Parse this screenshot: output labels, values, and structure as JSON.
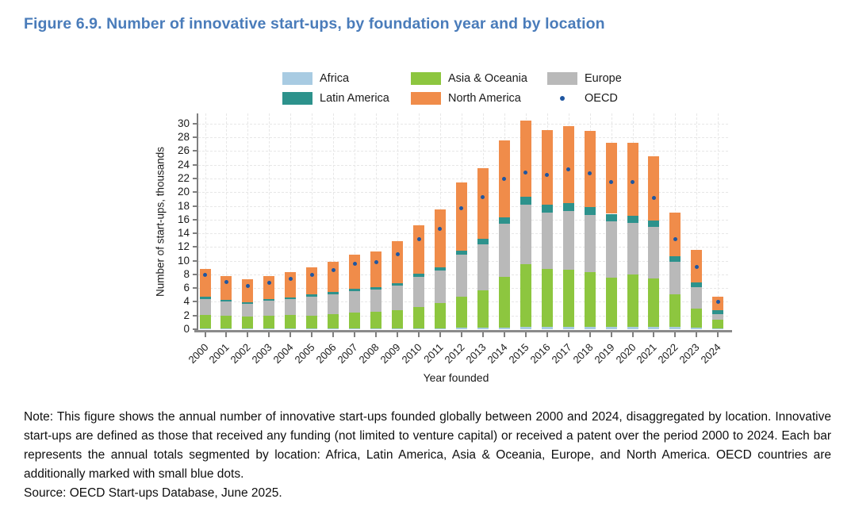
{
  "page": {
    "title": "Figure 6.9. Number of innovative start-ups, by foundation year and by location"
  },
  "legend": {
    "items": [
      {
        "label": "Africa",
        "type": "swatch",
        "color": "#a8cbe2"
      },
      {
        "label": "Asia & Oceania",
        "type": "swatch",
        "color": "#8dc63f"
      },
      {
        "label": "Europe",
        "type": "swatch",
        "color": "#b9b9b9"
      },
      {
        "label": "Latin America",
        "type": "swatch",
        "color": "#2d928c"
      },
      {
        "label": "North America",
        "type": "swatch",
        "color": "#f08c4a"
      },
      {
        "label": "OECD",
        "type": "dot",
        "color": "#1f56a0"
      }
    ]
  },
  "chart_data": {
    "type": "bar",
    "stacked": true,
    "title": "",
    "xlabel": "Year founded",
    "ylabel": "Number of start-ups, thousands",
    "ylim": [
      0,
      31.5
    ],
    "y_ticks": [
      0,
      2,
      4,
      6,
      8,
      10,
      12,
      14,
      16,
      18,
      20,
      22,
      24,
      26,
      28,
      30
    ],
    "grid": true,
    "legend_position": "top",
    "categories": [
      "2000",
      "2001",
      "2002",
      "2003",
      "2004",
      "2005",
      "2006",
      "2007",
      "2008",
      "2009",
      "2010",
      "2011",
      "2012",
      "2013",
      "2014",
      "2015",
      "2016",
      "2017",
      "2018",
      "2019",
      "2020",
      "2021",
      "2022",
      "2023",
      "2024"
    ],
    "series": [
      {
        "name": "Africa",
        "color": "#a8cbe2",
        "values": [
          0.1,
          0.1,
          0.1,
          0.1,
          0.1,
          0.1,
          0.1,
          0.1,
          0.1,
          0.1,
          0.15,
          0.15,
          0.2,
          0.2,
          0.25,
          0.3,
          0.35,
          0.35,
          0.35,
          0.35,
          0.35,
          0.4,
          0.3,
          0.2,
          0.1
        ]
      },
      {
        "name": "Asia & Oceania",
        "color": "#8dc63f",
        "values": [
          2.0,
          1.85,
          1.7,
          1.9,
          2.0,
          1.9,
          2.1,
          2.3,
          2.4,
          2.65,
          3.1,
          3.65,
          4.5,
          5.45,
          7.4,
          9.2,
          8.45,
          8.3,
          8.0,
          7.15,
          7.6,
          7.05,
          4.85,
          2.8,
          1.3
        ]
      },
      {
        "name": "Europe",
        "color": "#b9b9b9",
        "values": [
          2.3,
          2.05,
          1.9,
          2.15,
          2.25,
          2.8,
          2.9,
          3.15,
          3.3,
          3.6,
          4.45,
          4.75,
          6.15,
          6.75,
          7.75,
          8.7,
          8.25,
          8.6,
          8.3,
          8.2,
          7.55,
          7.45,
          4.65,
          3.1,
          0.8
        ]
      },
      {
        "name": "Latin America",
        "color": "#2d928c",
        "values": [
          0.3,
          0.3,
          0.25,
          0.25,
          0.3,
          0.3,
          0.3,
          0.3,
          0.3,
          0.35,
          0.45,
          0.5,
          0.65,
          0.8,
          0.9,
          1.15,
          1.15,
          1.15,
          1.15,
          1.15,
          1.05,
          0.95,
          0.9,
          0.7,
          0.6
        ]
      },
      {
        "name": "North America",
        "color": "#f08c4a",
        "values": [
          4.1,
          3.5,
          3.35,
          3.4,
          3.7,
          3.9,
          4.5,
          5.05,
          5.2,
          6.1,
          7.05,
          8.45,
          9.9,
          10.3,
          11.3,
          11.15,
          10.9,
          11.2,
          11.1,
          10.35,
          10.65,
          9.45,
          6.35,
          4.8,
          1.9
        ]
      }
    ],
    "dot_series": {
      "name": "OECD",
      "color": "#1f56a0",
      "values": [
        7.9,
        6.9,
        6.3,
        6.8,
        7.3,
        7.9,
        8.6,
        9.5,
        9.8,
        11.0,
        13.1,
        14.7,
        17.7,
        19.3,
        21.9,
        22.9,
        22.5,
        23.3,
        22.8,
        21.5,
        21.5,
        19.2,
        13.1,
        9.1,
        4.0
      ]
    }
  },
  "footnote": {
    "note": "Note: This figure shows the annual number of innovative start-ups founded globally between 2000 and 2024, disaggregated by location. Innovative start-ups are defined as those that received any funding (not limited to venture capital) or received a patent over the period 2000 to 2024. Each bar represents the annual totals segmented by location: Africa, Latin America, Asia & Oceania, Europe, and North America. OECD countries are additionally marked with small blue dots.",
    "source": "Source: OECD Start-ups Database, June 2025."
  }
}
